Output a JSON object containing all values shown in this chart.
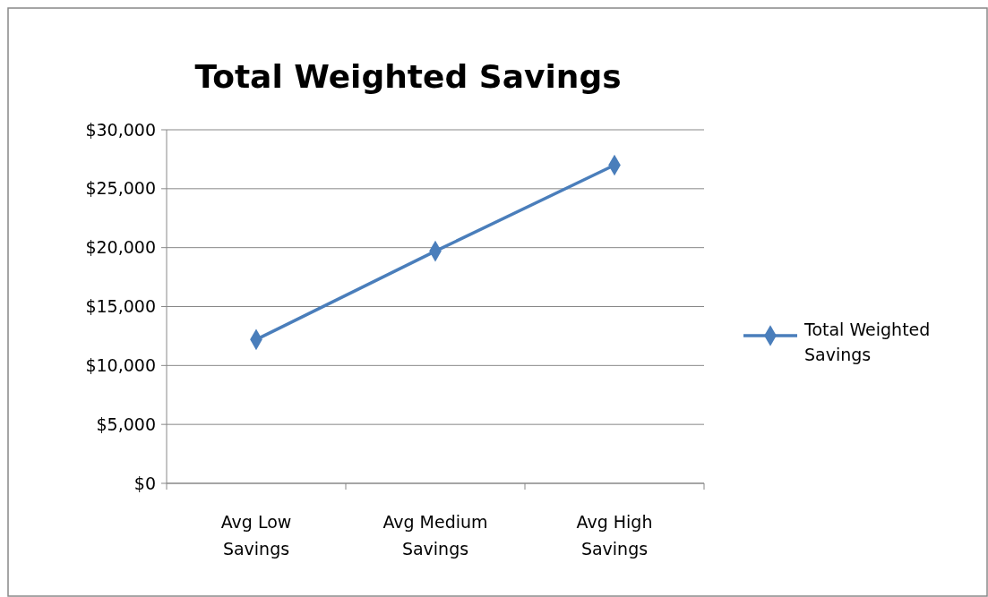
{
  "chart_data": {
    "type": "line",
    "title": "Total Weighted Savings",
    "categories": [
      "Avg Low Savings",
      "Avg Medium Savings",
      "Avg High Savings"
    ],
    "series": [
      {
        "name": "Total Weighted Savings",
        "color": "#4a7ebb",
        "values": [
          12200,
          19700,
          27000
        ]
      }
    ],
    "ylim": [
      0,
      30000
    ],
    "yticks": [
      {
        "value": 0,
        "label": "$0"
      },
      {
        "value": 5000,
        "label": "$5,000"
      },
      {
        "value": 10000,
        "label": "$10,000"
      },
      {
        "value": 15000,
        "label": "$15,000"
      },
      {
        "value": 20000,
        "label": "$20,000"
      },
      {
        "value": 25000,
        "label": "$25,000"
      },
      {
        "value": 30000,
        "label": "$30,000"
      }
    ],
    "grid": "y",
    "legend": "right",
    "marker": "diamond",
    "line_style": "solid"
  }
}
